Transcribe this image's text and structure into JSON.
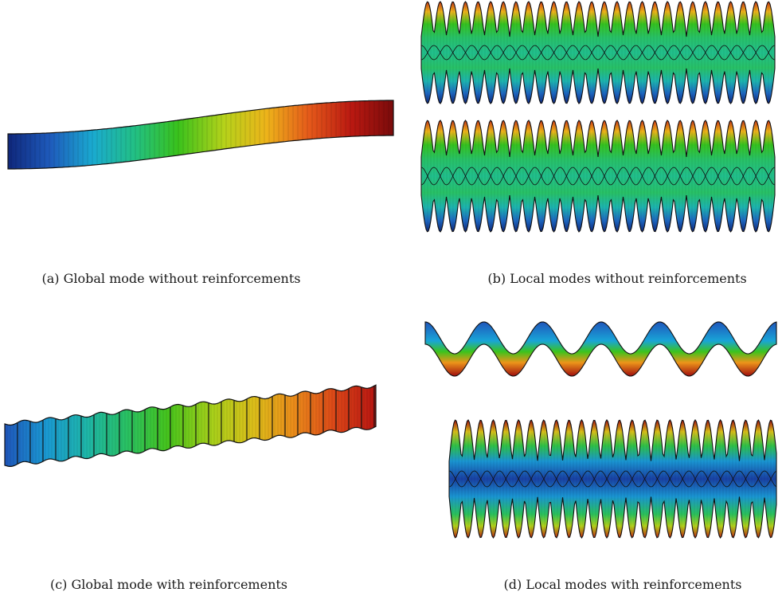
{
  "figure": {
    "captions": {
      "a": "(a) Global mode without reinforcements",
      "b": "(b) Local modes without reinforcements",
      "c": "(c) Global mode with reinforcements",
      "d": "(d) Local modes with reinforcements"
    },
    "panels": [
      {
        "id": "a",
        "content": "global-mode-beam",
        "reinforced": false
      },
      {
        "id": "b",
        "content": "local-mode-wave-pair",
        "reinforced": false
      },
      {
        "id": "c",
        "content": "global-mode-beam",
        "reinforced": true
      },
      {
        "id": "d",
        "content": "local-mode-wave-pair",
        "reinforced": true
      }
    ],
    "colormap": [
      "#0b1e6e",
      "#1f4fb8",
      "#19a7d8",
      "#21c08a",
      "#36c21c",
      "#b8d21a",
      "#f0b21a",
      "#e4501a",
      "#b31010",
      "#6e0a0a"
    ]
  }
}
